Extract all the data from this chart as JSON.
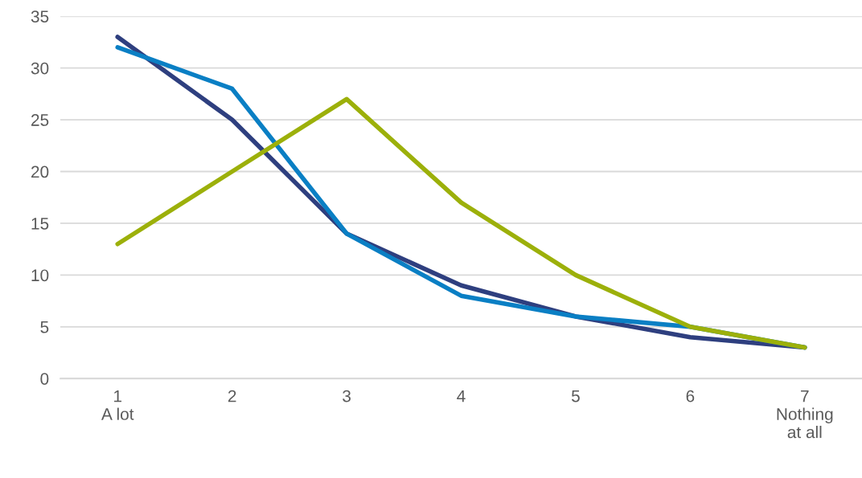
{
  "chart_data": {
    "type": "line",
    "categories": [
      "1\nA lot",
      "2",
      "3",
      "4",
      "5",
      "6",
      "7\nNothing\nat all"
    ],
    "series": [
      {
        "color": "#2e3f7f",
        "values": [
          33,
          25,
          14,
          9,
          6,
          4,
          3
        ]
      },
      {
        "color": "#0a7fc4",
        "values": [
          32,
          28,
          14,
          8,
          6,
          5,
          3
        ]
      },
      {
        "color": "#9cb00a",
        "values": [
          13,
          20,
          27,
          17,
          10,
          5,
          3
        ]
      }
    ],
    "ylim": [
      0,
      35
    ],
    "yticks": [
      0,
      5,
      10,
      15,
      20,
      25,
      30,
      35
    ],
    "grid": "y",
    "legend": false,
    "marker": "none",
    "line_style": "solid"
  }
}
